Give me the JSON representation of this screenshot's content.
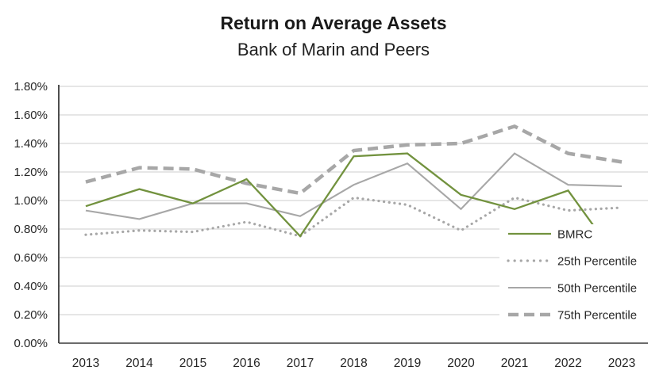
{
  "header": {
    "title": "Return on Average Assets",
    "subtitle": "Bank of Marin and Peers"
  },
  "chart_data": {
    "type": "line",
    "title": "Return on Average Assets",
    "subtitle": "Bank of Marin and Peers",
    "categories": [
      "2013",
      "2014",
      "2015",
      "2016",
      "2017",
      "2018",
      "2019",
      "2020",
      "2021",
      "2022",
      "2023"
    ],
    "series": [
      {
        "name": "BMRC",
        "style": "solid",
        "color": "#72923e",
        "width": 2.3,
        "values": [
          0.96,
          1.08,
          0.98,
          1.15,
          0.75,
          1.31,
          1.33,
          1.04,
          0.94,
          1.07,
          0.55
        ],
        "note": "final 2022-to-2023 segment is partially hidden behind the legend background"
      },
      {
        "name": "25th Percentile",
        "style": "dotted",
        "color": "#a7a7a7",
        "width": 3.2,
        "values": [
          0.76,
          0.79,
          0.78,
          0.85,
          0.75,
          1.02,
          0.97,
          0.79,
          1.02,
          0.93,
          0.95
        ]
      },
      {
        "name": "50th Percentile",
        "style": "solid",
        "color": "#a7a7a7",
        "width": 2.1,
        "values": [
          0.93,
          0.87,
          0.98,
          0.98,
          0.89,
          1.11,
          1.26,
          0.94,
          1.33,
          1.11,
          1.1
        ]
      },
      {
        "name": "75th Percentile",
        "style": "dashed",
        "color": "#a7a7a7",
        "width": 4.5,
        "values": [
          1.13,
          1.23,
          1.22,
          1.12,
          1.05,
          1.35,
          1.39,
          1.4,
          1.52,
          1.33,
          1.27
        ]
      }
    ],
    "ylabel": "",
    "xlabel": "",
    "ylim": [
      0,
      1.8
    ],
    "y_tick_step": 0.2,
    "y_tick_labels": [
      "0.00%",
      "0.20%",
      "0.40%",
      "0.60%",
      "0.80%",
      "1.00%",
      "1.20%",
      "1.40%",
      "1.60%",
      "1.80%"
    ],
    "grid": "horizontal",
    "legend_position": "inside-right",
    "colors": {
      "gridline": "#d6d6d6",
      "axis": "#3a3a3a",
      "tick_text": "#262626",
      "legend_text": "#262626",
      "legend_background": "#ffffff"
    }
  }
}
